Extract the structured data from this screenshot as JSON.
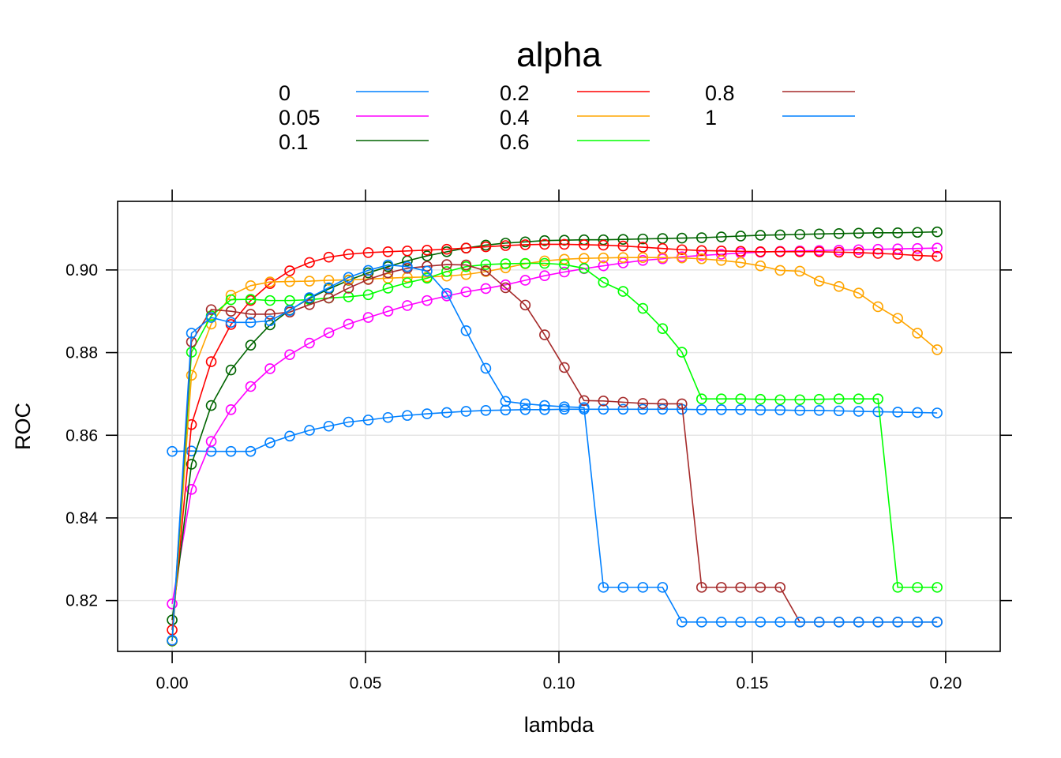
{
  "chart_data": {
    "type": "line",
    "title": "",
    "xlabel": "lambda",
    "ylabel": "ROC",
    "xlim": [
      -0.0141,
      0.2141
    ],
    "ylim": [
      0.8077,
      0.9166
    ],
    "xticks": [
      "0.00",
      "0.05",
      "0.10",
      "0.15",
      "0.20"
    ],
    "xtick_values": [
      0,
      0.05,
      0.1,
      0.15,
      0.2
    ],
    "yticks": [
      "0.82",
      "0.84",
      "0.86",
      "0.88",
      "0.90"
    ],
    "ytick_values": [
      0.82,
      0.84,
      0.86,
      0.88,
      0.9
    ],
    "grid": true,
    "marker": "open-circle",
    "legend_position": "top",
    "legend_title": "alpha",
    "x": [
      0,
      0.005,
      0.0101,
      0.0152,
      0.0203,
      0.0253,
      0.0304,
      0.0355,
      0.0405,
      0.0456,
      0.0507,
      0.0558,
      0.0608,
      0.0659,
      0.071,
      0.076,
      0.0811,
      0.0862,
      0.0913,
      0.0963,
      0.1014,
      0.1065,
      0.1115,
      0.1166,
      0.1217,
      0.1268,
      0.1318,
      0.1369,
      0.142,
      0.147,
      0.1521,
      0.1572,
      0.1623,
      0.1673,
      0.1724,
      0.1775,
      0.1825,
      0.1876,
      0.1927,
      0.1978
    ],
    "series": [
      {
        "name": "0",
        "color": "#0080ff",
        "values": [
          0.8561,
          0.8562,
          0.8561,
          0.8561,
          0.8561,
          0.8582,
          0.8598,
          0.8612,
          0.8622,
          0.8632,
          0.8637,
          0.8643,
          0.8648,
          0.8652,
          0.8655,
          0.8658,
          0.866,
          0.8661,
          0.8662,
          0.8662,
          0.8663,
          0.8663,
          0.8663,
          0.8663,
          0.8663,
          0.8663,
          0.8663,
          0.8662,
          0.8662,
          0.8662,
          0.8661,
          0.8661,
          0.866,
          0.866,
          0.8659,
          0.8658,
          0.8657,
          0.8656,
          0.8655,
          0.8654
        ]
      },
      {
        "name": "0.05",
        "color": "#ff00ff",
        "values": [
          0.8192,
          0.8469,
          0.8585,
          0.8662,
          0.8718,
          0.8761,
          0.8795,
          0.8823,
          0.8848,
          0.8869,
          0.8885,
          0.89,
          0.8914,
          0.8926,
          0.8937,
          0.8947,
          0.8955,
          0.8964,
          0.8975,
          0.8986,
          0.8995,
          0.9003,
          0.901,
          0.9017,
          0.9023,
          0.9027,
          0.9032,
          0.9035,
          0.9038,
          0.9041,
          0.9043,
          0.9045,
          0.9046,
          0.9047,
          0.9048,
          0.9049,
          0.905,
          0.9051,
          0.9052,
          0.9053
        ]
      },
      {
        "name": "0.1",
        "color": "#006400",
        "values": [
          0.8153,
          0.853,
          0.8672,
          0.8758,
          0.8818,
          0.8867,
          0.8903,
          0.8931,
          0.8954,
          0.8975,
          0.8993,
          0.9008,
          0.9022,
          0.9034,
          0.9044,
          0.9053,
          0.906,
          0.9065,
          0.9068,
          0.9071,
          0.9072,
          0.9073,
          0.9073,
          0.9074,
          0.9075,
          0.9076,
          0.9077,
          0.9078,
          0.908,
          0.9082,
          0.9084,
          0.9085,
          0.9086,
          0.9087,
          0.9088,
          0.9089,
          0.909,
          0.909,
          0.9091,
          0.9092
        ]
      },
      {
        "name": "0.2",
        "color": "#ff0000",
        "values": [
          0.8129,
          0.8626,
          0.8778,
          0.8868,
          0.8926,
          0.8967,
          0.8998,
          0.9018,
          0.9031,
          0.9038,
          0.9042,
          0.9044,
          0.9046,
          0.9048,
          0.905,
          0.9053,
          0.9056,
          0.9059,
          0.9061,
          0.9062,
          0.9062,
          0.9061,
          0.906,
          0.9058,
          0.9055,
          0.9052,
          0.9049,
          0.9047,
          0.9046,
          0.9045,
          0.9044,
          0.9044,
          0.9044,
          0.9044,
          0.9043,
          0.9042,
          0.904,
          0.9038,
          0.9035,
          0.9033
        ]
      },
      {
        "name": "0.4",
        "color": "#ffa500",
        "values": [
          0.8102,
          0.8745,
          0.8869,
          0.8939,
          0.8962,
          0.8971,
          0.8972,
          0.8973,
          0.8975,
          0.8976,
          0.8978,
          0.898,
          0.8982,
          0.8983,
          0.8985,
          0.8989,
          0.8996,
          0.9005,
          0.9015,
          0.9022,
          0.9026,
          0.9028,
          0.9029,
          0.903,
          0.903,
          0.903,
          0.9029,
          0.9027,
          0.9023,
          0.9018,
          0.901,
          0.8999,
          0.8997,
          0.8973,
          0.896,
          0.8944,
          0.8911,
          0.8883,
          0.8847,
          0.8807
        ]
      },
      {
        "name": "0.6",
        "color": "#00ff00",
        "values": [
          0.8102,
          0.8801,
          0.8889,
          0.8928,
          0.8929,
          0.8926,
          0.8926,
          0.8928,
          0.8932,
          0.8935,
          0.894,
          0.8956,
          0.8969,
          0.898,
          0.8996,
          0.9008,
          0.9013,
          0.9015,
          0.9016,
          0.9016,
          0.9013,
          0.9004,
          0.897,
          0.8948,
          0.8907,
          0.8858,
          0.8801,
          0.8688,
          0.8688,
          0.8688,
          0.8687,
          0.8686,
          0.8686,
          0.8687,
          0.8688,
          0.8688,
          0.8688,
          0.8232,
          0.8232,
          0.8232
        ]
      },
      {
        "name": "0.8",
        "color": "#a52a2a",
        "values": [
          0.8103,
          0.8826,
          0.8904,
          0.89,
          0.8893,
          0.8893,
          0.8898,
          0.8916,
          0.8932,
          0.8956,
          0.8977,
          0.8993,
          0.9004,
          0.9009,
          0.9013,
          0.9012,
          0.8998,
          0.8957,
          0.8915,
          0.8843,
          0.8764,
          0.8684,
          0.8683,
          0.868,
          0.8677,
          0.8676,
          0.8676,
          0.8232,
          0.8232,
          0.8232,
          0.8232,
          0.8232,
          0.8148,
          0.8148,
          0.8148,
          0.8148,
          0.8148,
          0.8148,
          0.8148,
          0.8148
        ]
      },
      {
        "name": "1",
        "color": "#0080ff",
        "values": [
          0.8104,
          0.8847,
          0.8885,
          0.8873,
          0.8873,
          0.8877,
          0.8902,
          0.8933,
          0.8957,
          0.8982,
          0.8999,
          0.9012,
          0.9008,
          0.8997,
          0.8943,
          0.8853,
          0.8762,
          0.8682,
          0.8676,
          0.8672,
          0.8669,
          0.8667,
          0.8232,
          0.8232,
          0.8232,
          0.8232,
          0.8148,
          0.8148,
          0.8148,
          0.8148,
          0.8148,
          0.8148,
          0.8148,
          0.8148,
          0.8148,
          0.8148,
          0.8148,
          0.8148,
          0.8148,
          0.8148
        ]
      }
    ]
  }
}
